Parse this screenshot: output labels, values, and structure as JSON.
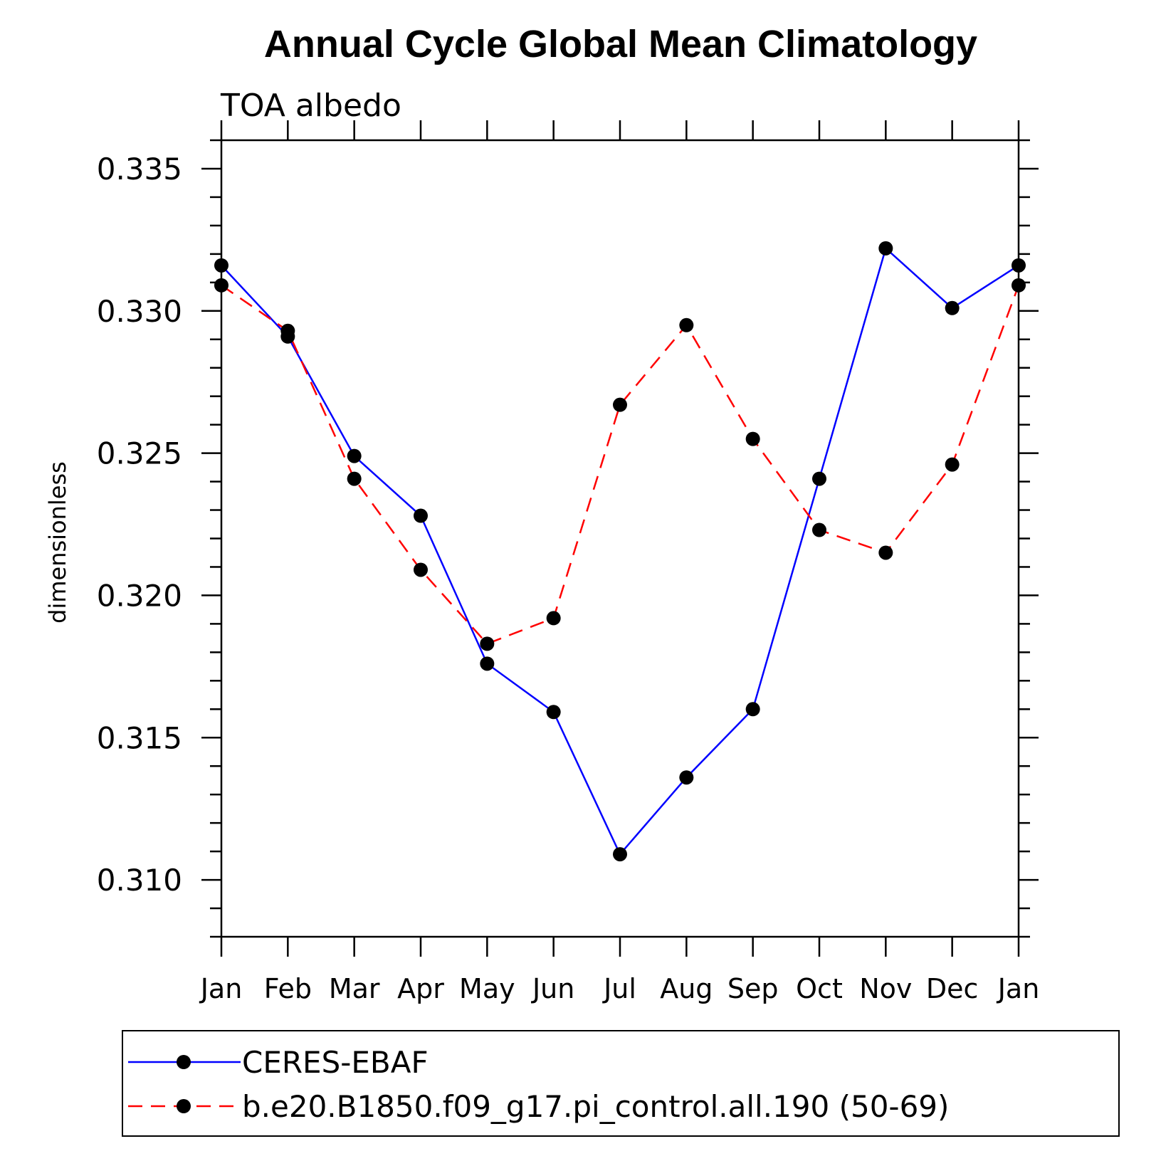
{
  "chart_data": {
    "type": "line",
    "title": "Annual Cycle Global Mean Climatology",
    "subtitle": "TOA albedo",
    "ylabel": "dimensionless",
    "xlabel": "",
    "categories": [
      "Jan",
      "Feb",
      "Mar",
      "Apr",
      "May",
      "Jun",
      "Jul",
      "Aug",
      "Sep",
      "Oct",
      "Nov",
      "Dec",
      "Jan"
    ],
    "ylim": [
      0.308,
      0.336
    ],
    "yticks": [
      "0.310",
      "0.315",
      "0.320",
      "0.325",
      "0.330",
      "0.335"
    ],
    "ytick_values": [
      0.31,
      0.315,
      0.32,
      0.325,
      0.33,
      0.335
    ],
    "grid": false,
    "legend_position": "bottom",
    "series": [
      {
        "name": "CERES-EBAF",
        "color": "#0000ff",
        "style": "solid",
        "values": [
          0.3316,
          0.3291,
          0.3249,
          0.3228,
          0.3176,
          0.3159,
          0.3109,
          0.3136,
          0.316,
          0.3241,
          0.3322,
          0.3301,
          0.3316
        ]
      },
      {
        "name": "b.e20.B1850.f09_g17.pi_control.all.190 (50-69)",
        "color": "#ff0000",
        "style": "dashed",
        "values": [
          0.3309,
          0.3293,
          0.3241,
          0.3209,
          0.3183,
          0.3192,
          0.3267,
          0.3295,
          0.3255,
          0.3223,
          0.3215,
          0.3246,
          0.3309
        ]
      }
    ]
  }
}
